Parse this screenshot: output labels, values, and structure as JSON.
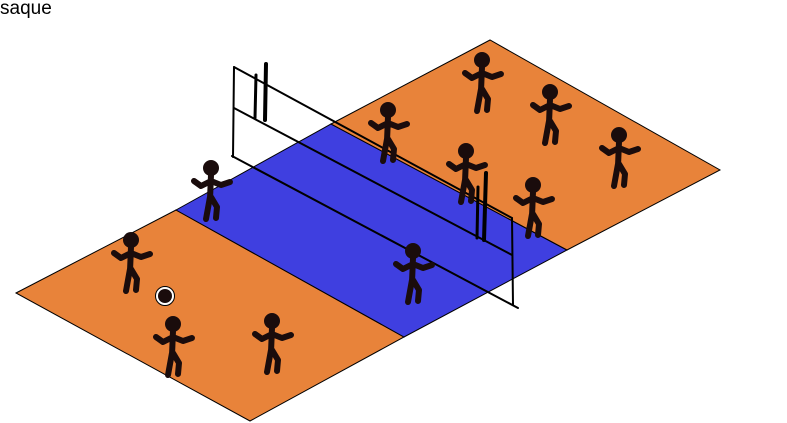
{
  "caption": "saque",
  "colors": {
    "back_court": "#E8833A",
    "front_zone": "#3F3FE0",
    "player": "#1A0C0C",
    "ball_fill": "#1A0C0C",
    "ball_ring": "#ffffff",
    "outline": "#000000",
    "net": "#000000"
  },
  "players": {
    "left_team": 4,
    "right_team": 7
  },
  "ball": "volleyball"
}
